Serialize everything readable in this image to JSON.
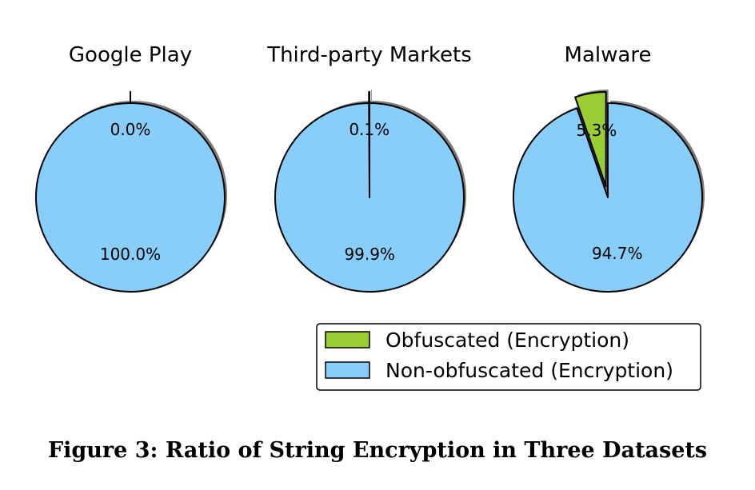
{
  "chart_data": {
    "type": "pie",
    "series_colors": {
      "obfuscated": "#9ACD32",
      "non_obfuscated": "#87CEFA"
    },
    "legend": {
      "placement": "bottom-right",
      "entries": [
        {
          "key": "obfuscated",
          "label": "Obfuscated (Encryption)",
          "color": "#9ACD32"
        },
        {
          "key": "non_obfuscated",
          "label": "Non-obfuscated (Encryption)",
          "color": "#87CEFA"
        }
      ]
    },
    "pies": [
      {
        "title": "Google Play",
        "slices": [
          {
            "key": "obfuscated",
            "value": 0.0,
            "label": "0.0%"
          },
          {
            "key": "non_obfuscated",
            "value": 100.0,
            "label": "100.0%"
          }
        ]
      },
      {
        "title": "Third-party Markets",
        "slices": [
          {
            "key": "obfuscated",
            "value": 0.1,
            "label": "0.1%"
          },
          {
            "key": "non_obfuscated",
            "value": 99.9,
            "label": "99.9%"
          }
        ]
      },
      {
        "title": "Malware",
        "slices": [
          {
            "key": "obfuscated",
            "value": 5.3,
            "label": "5.3%"
          },
          {
            "key": "non_obfuscated",
            "value": 94.7,
            "label": "94.7%"
          }
        ]
      }
    ]
  },
  "caption": "Figure 3: Ratio of String Encryption in Three Datasets"
}
